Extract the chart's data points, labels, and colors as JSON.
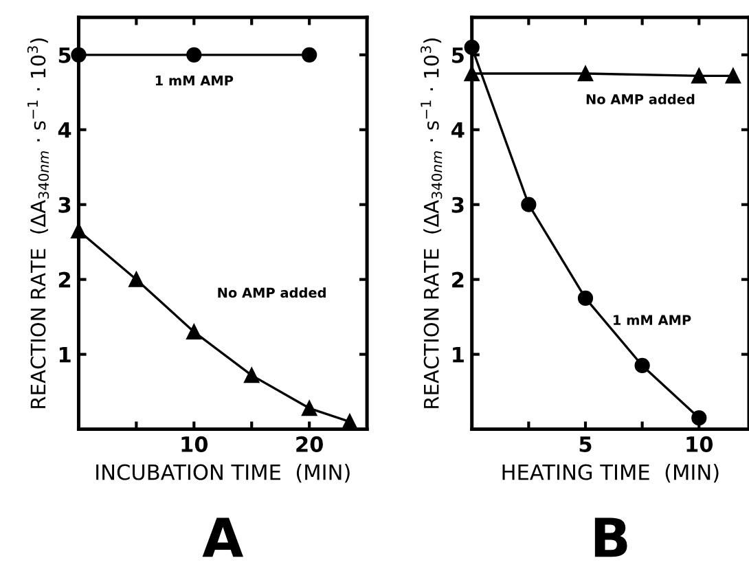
{
  "chart_data": [
    {
      "type": "line",
      "xlabel": "INCUBATION TIME  (MIN)",
      "ylabel": "REACTION RATE  (ΔA$_{340nm}$ · s$^{−1}$ · 10$^{3}$)",
      "annotations": [
        "A"
      ],
      "xlim": [
        0,
        25
      ],
      "xticks": [
        {
          "value": 5,
          "label": null
        },
        10,
        {
          "value": 15,
          "label": null
        },
        20
      ],
      "ylim": [
        0,
        5.5
      ],
      "yticks": [
        1,
        2,
        3,
        4,
        5
      ],
      "grid": false,
      "legend": false,
      "series": [
        {
          "name": "1 mM AMP",
          "color": "#000000",
          "marker": "circle",
          "x": [
            0,
            10,
            20
          ],
          "values": [
            5.0,
            5.0,
            5.0
          ]
        },
        {
          "name": "No AMP added",
          "color": "#000000",
          "marker": "triangle",
          "x": [
            0,
            5,
            10,
            15,
            20,
            23.5
          ],
          "values": [
            2.65,
            2.0,
            1.3,
            0.72,
            0.28,
            0.1
          ]
        }
      ]
    },
    {
      "type": "line",
      "xlabel": "HEATING TIME  (MIN)",
      "ylabel": "REACTION RATE  (ΔA$_{340nm}$ · s$^{−1}$ · 10$^{3}$)",
      "annotations": [
        "B"
      ],
      "xlim": [
        0,
        12.2
      ],
      "xticks": [
        {
          "value": 2.5,
          "label": null
        },
        5,
        {
          "value": 7.5,
          "label": null
        },
        10
      ],
      "ylim": [
        0,
        5.5
      ],
      "yticks": [
        1,
        2,
        3,
        4,
        5
      ],
      "grid": false,
      "legend": false,
      "series": [
        {
          "name": "No AMP added",
          "color": "#000000",
          "marker": "triangle",
          "x": [
            0,
            5,
            10,
            11.5
          ],
          "values": [
            4.75,
            4.75,
            4.72,
            4.72
          ]
        },
        {
          "name": "1 mM AMP",
          "color": "#000000",
          "marker": "circle",
          "x": [
            0,
            2.5,
            5,
            7.5,
            10
          ],
          "values": [
            5.1,
            3.0,
            1.75,
            0.85,
            0.15
          ]
        }
      ]
    }
  ]
}
